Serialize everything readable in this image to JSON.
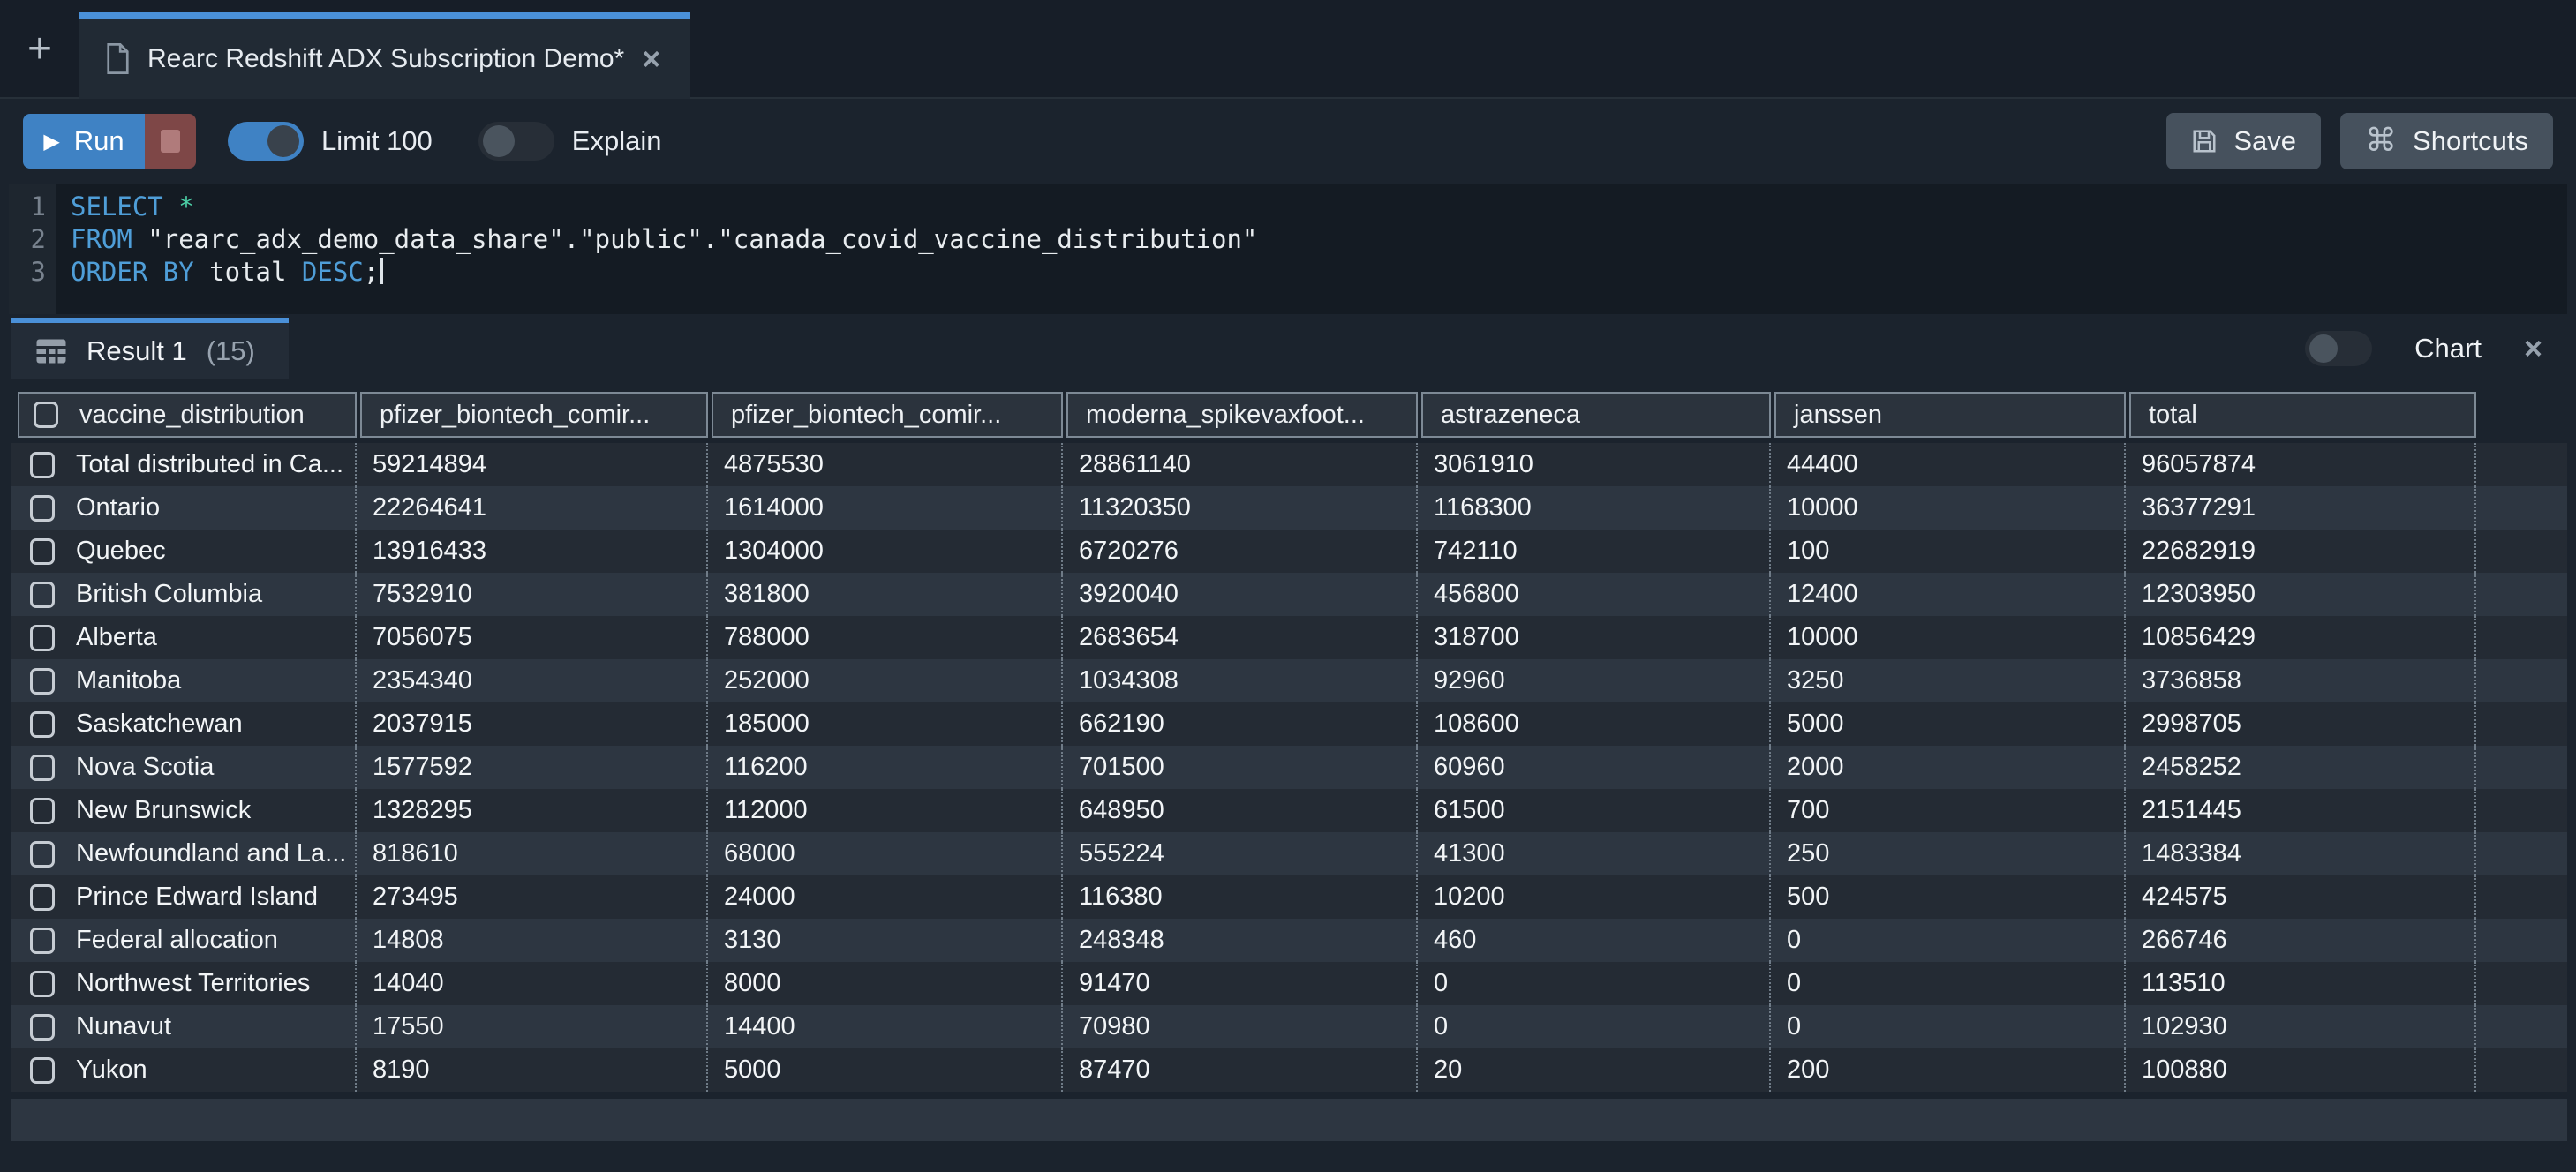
{
  "icons": {
    "plus": "+",
    "play": "▶",
    "command": "⌘",
    "close": "×"
  },
  "tab_bar": {
    "tab_title": "Rearc Redshift ADX Subscription Demo*"
  },
  "toolbar": {
    "run_label": "Run",
    "limit_label": "Limit 100",
    "limit_enabled": true,
    "explain_label": "Explain",
    "explain_enabled": false,
    "save_label": "Save",
    "shortcuts_label": "Shortcuts"
  },
  "editor": {
    "lines": [
      {
        "number": "1",
        "segments": [
          {
            "t": "SELECT",
            "c": "kw"
          },
          {
            "t": " ",
            "c": "pl"
          },
          {
            "t": "*",
            "c": "op"
          }
        ]
      },
      {
        "number": "2",
        "segments": [
          {
            "t": "FROM",
            "c": "kw"
          },
          {
            "t": " \"rearc_adx_demo_data_share\".\"public\".\"canada_covid_vaccine_distribution\"",
            "c": "pl"
          }
        ]
      },
      {
        "number": "3",
        "segments": [
          {
            "t": "ORDER BY",
            "c": "kw"
          },
          {
            "t": " total ",
            "c": "pl"
          },
          {
            "t": "DESC",
            "c": "kw"
          },
          {
            "t": ";",
            "c": "pl"
          }
        ],
        "cursor": true
      }
    ]
  },
  "results": {
    "tab_label": "Result 1",
    "tab_count": "(15)",
    "chart_label": "Chart",
    "chart_enabled": false,
    "columns": [
      "vaccine_distribution",
      "pfizer_biontech_comir...",
      "pfizer_biontech_comir...",
      "moderna_spikevaxfoot...",
      "astrazeneca",
      "janssen",
      "total"
    ],
    "rows": [
      [
        "Total distributed in Ca...",
        "59214894",
        "4875530",
        "28861140",
        "3061910",
        "44400",
        "96057874"
      ],
      [
        "Ontario",
        "22264641",
        "1614000",
        "11320350",
        "1168300",
        "10000",
        "36377291"
      ],
      [
        "Quebec",
        "13916433",
        "1304000",
        "6720276",
        "742110",
        "100",
        "22682919"
      ],
      [
        "British Columbia",
        "7532910",
        "381800",
        "3920040",
        "456800",
        "12400",
        "12303950"
      ],
      [
        "Alberta",
        "7056075",
        "788000",
        "2683654",
        "318700",
        "10000",
        "10856429"
      ],
      [
        "Manitoba",
        "2354340",
        "252000",
        "1034308",
        "92960",
        "3250",
        "3736858"
      ],
      [
        "Saskatchewan",
        "2037915",
        "185000",
        "662190",
        "108600",
        "5000",
        "2998705"
      ],
      [
        "Nova Scotia",
        "1577592",
        "116200",
        "701500",
        "60960",
        "2000",
        "2458252"
      ],
      [
        "New Brunswick",
        "1328295",
        "112000",
        "648950",
        "61500",
        "700",
        "2151445"
      ],
      [
        "Newfoundland and La...",
        "818610",
        "68000",
        "555224",
        "41300",
        "250",
        "1483384"
      ],
      [
        "Prince Edward Island",
        "273495",
        "24000",
        "116380",
        "10200",
        "500",
        "424575"
      ],
      [
        "Federal allocation",
        "14808",
        "3130",
        "248348",
        "460",
        "0",
        "266746"
      ],
      [
        "Northwest Territories",
        "14040",
        "8000",
        "91470",
        "0",
        "0",
        "113510"
      ],
      [
        "Nunavut",
        "17550",
        "14400",
        "70980",
        "0",
        "0",
        "102930"
      ],
      [
        "Yukon",
        "8190",
        "5000",
        "87470",
        "20",
        "200",
        "100880"
      ]
    ]
  },
  "colors": {
    "accent_blue": "#4a90d8",
    "run_blue": "#3f82c4",
    "stop_red": "#7e4747",
    "keyword_blue": "#4f9ed8",
    "star_teal": "#4ccfa6",
    "header_border": "#7d8995",
    "row_odd": "#242b34",
    "row_even": "#2d3641"
  }
}
